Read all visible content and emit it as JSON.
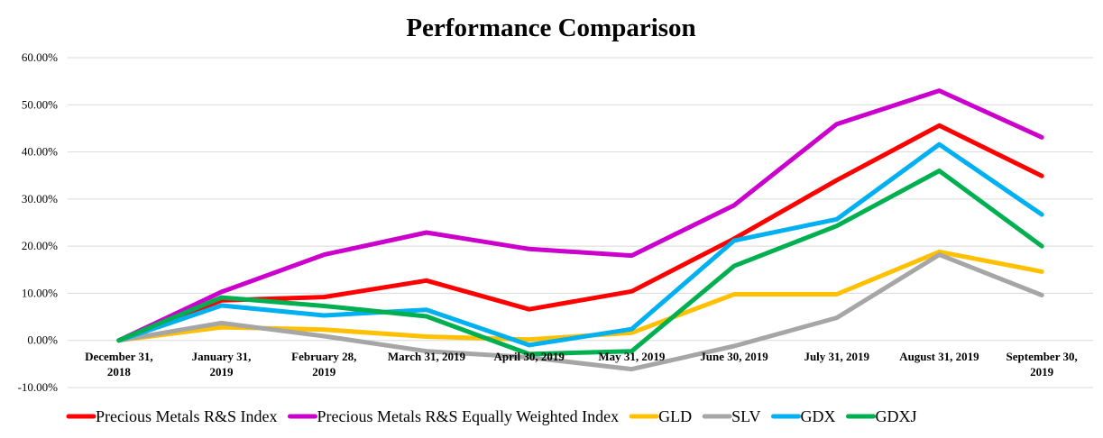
{
  "chart_data": {
    "type": "line",
    "title": "Performance Comparison",
    "xlabel": "",
    "ylabel": "",
    "ylim": [
      -10,
      60
    ],
    "y_ticks": [
      "-10.00%",
      "0.00%",
      "10.00%",
      "20.00%",
      "30.00%",
      "40.00%",
      "50.00%",
      "60.00%"
    ],
    "grid": true,
    "legend_position": "bottom",
    "categories": [
      "December 31, 2018",
      "January 31, 2019",
      "February 28, 2019",
      "March 31, 2019",
      "April 30, 2019",
      "May 31, 2019",
      "June 30, 2019",
      "July 31, 2019",
      "August 31, 2019",
      "September 30, 2019"
    ],
    "category_lines": [
      [
        "December 31,",
        "2018"
      ],
      [
        "January 31,",
        "2019"
      ],
      [
        "February 28,",
        "2019"
      ],
      [
        "March 31, 2019"
      ],
      [
        "April 30, 2019"
      ],
      [
        "May 31, 2019"
      ],
      [
        "June 30, 2019"
      ],
      [
        "July 31, 2019"
      ],
      [
        "August 31, 2019"
      ],
      [
        "September 30,",
        "2019"
      ]
    ],
    "series": [
      {
        "name": "Precious Metals R&S Index",
        "color": "#ff0000",
        "values": [
          0,
          8.5,
          9.2,
          12.7,
          6.6,
          10.4,
          21.6,
          34.0,
          45.6,
          34.9
        ]
      },
      {
        "name": "Precious Metals R&S Equally Weighted Index",
        "color": "#cc00cc",
        "values": [
          0,
          10.3,
          18.2,
          22.9,
          19.4,
          18.0,
          28.7,
          45.9,
          53.0,
          43.1
        ]
      },
      {
        "name": "GLD",
        "color": "#ffc000",
        "values": [
          0,
          2.8,
          2.3,
          0.8,
          0.2,
          1.6,
          9.8,
          9.8,
          18.8,
          14.6
        ]
      },
      {
        "name": "SLV",
        "color": "#a6a6a6",
        "values": [
          0,
          3.7,
          0.9,
          -2.3,
          -3.6,
          -6.1,
          -1.2,
          4.8,
          18.2,
          9.6
        ]
      },
      {
        "name": "GDX",
        "color": "#00b0f0",
        "values": [
          0,
          7.4,
          5.3,
          6.5,
          -1.0,
          2.4,
          21.2,
          25.7,
          41.6,
          26.7
        ]
      },
      {
        "name": "GDXJ",
        "color": "#00b050",
        "values": [
          0,
          9.1,
          7.3,
          5.1,
          -2.9,
          -2.3,
          15.8,
          24.3,
          36.0,
          20.0
        ]
      }
    ]
  }
}
